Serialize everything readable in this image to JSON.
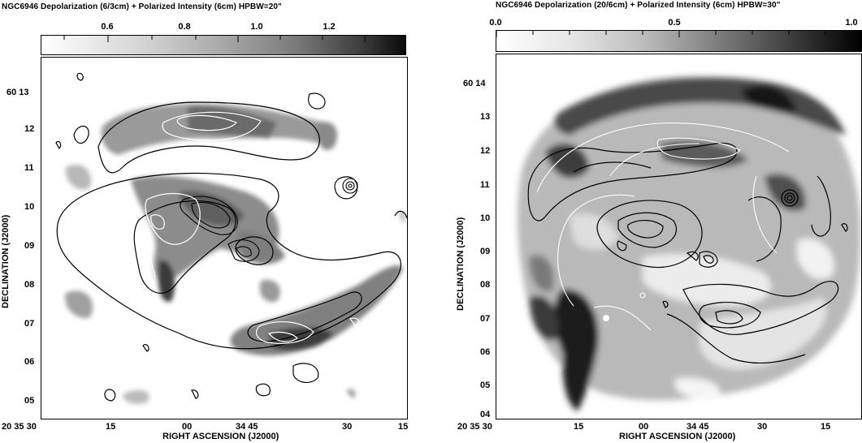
{
  "left_panel": {
    "title": "NGC6946  Depolarization (6/3cm)  +  Polarized Intensity (6cm)  HPBW=20\"",
    "colorbar_labels": [
      "0.6",
      "0.8",
      "1.0",
      "1.2"
    ],
    "y_tick_labels": [
      "60 13",
      "12",
      "11",
      "10",
      "09",
      "08",
      "07",
      "06",
      "05"
    ],
    "x_tick_labels": [
      "20 35 30",
      "15",
      "00",
      "34 45",
      "30",
      "15"
    ],
    "xlabel": "RIGHT ASCENSION (J2000)",
    "ylabel": "DECLINATION (J2000)"
  },
  "right_panel": {
    "title": "NGC6946  Depolarization (20/6cm)  +  Polarized Intensity (6cm)  HPBW=30\"",
    "colorbar_labels": [
      "0.0",
      "0.5",
      "1.0"
    ],
    "y_tick_labels": [
      "60 14",
      "13",
      "12",
      "11",
      "10",
      "09",
      "08",
      "07",
      "06",
      "05",
      "04"
    ],
    "x_tick_labels": [
      "20 35 30",
      "15",
      "00",
      "34 45",
      "30",
      "15"
    ],
    "xlabel": "RIGHT ASCENSION (J2000)",
    "ylabel": "DECLINATION (J2000)"
  },
  "colors": {
    "ink": "#000000",
    "background": "#ffffff",
    "light_contour": "#ffffff"
  }
}
